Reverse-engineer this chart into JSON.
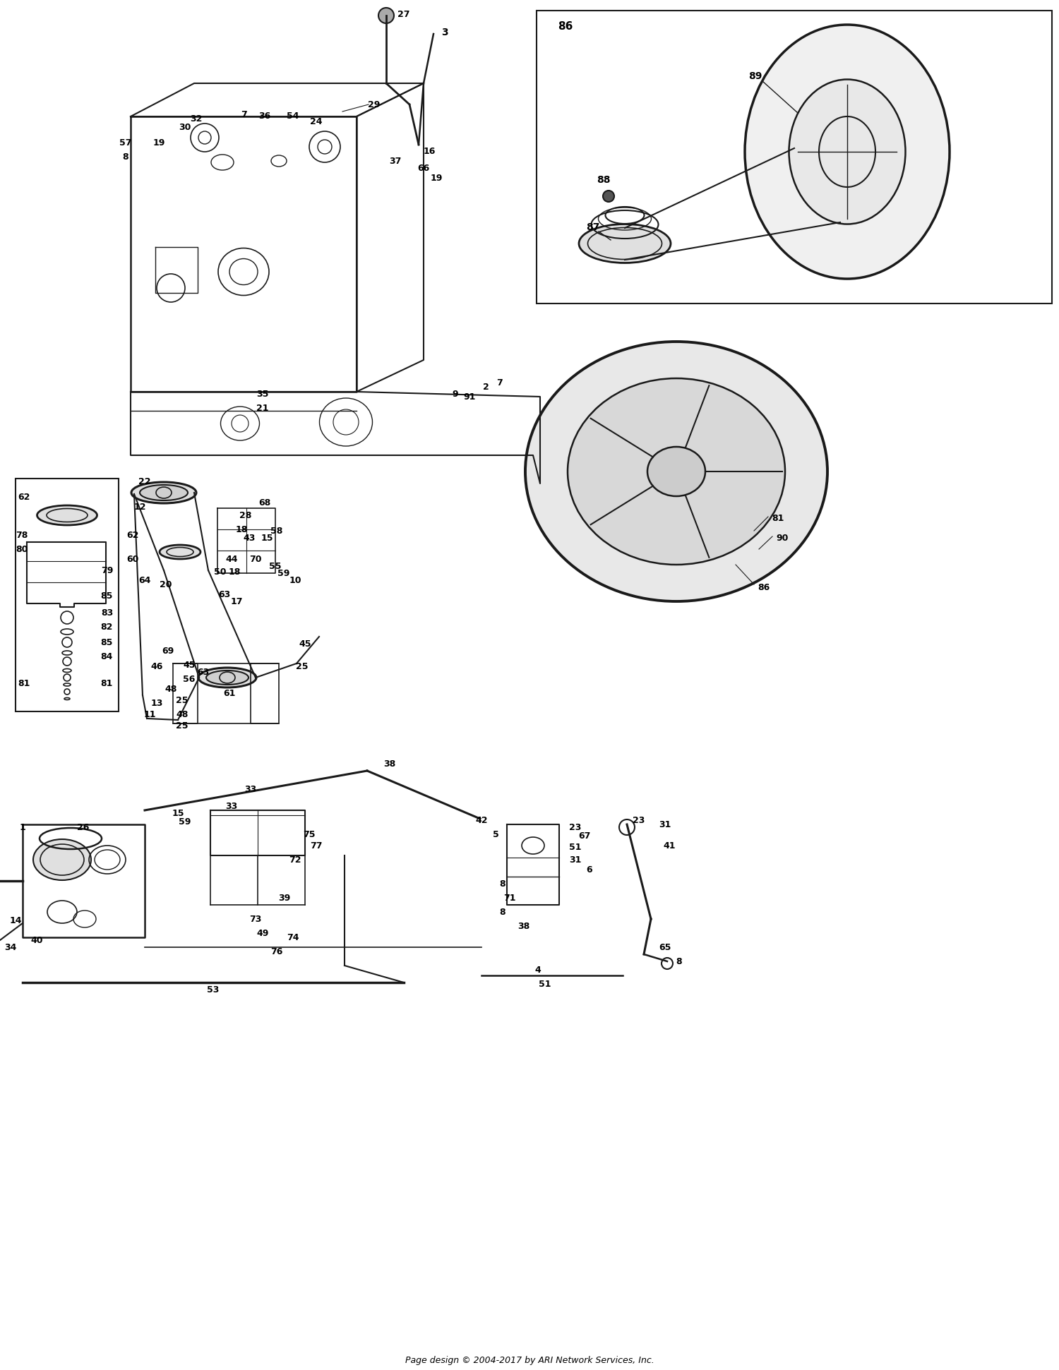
{
  "title": "",
  "footer": "Page design © 2004-2017 by ARI Network Services, Inc.",
  "background_color": "#ffffff",
  "line_color": "#1a1a1a",
  "text_color": "#000000",
  "fig_width": 15.0,
  "fig_height": 19.41,
  "dpi": 100
}
